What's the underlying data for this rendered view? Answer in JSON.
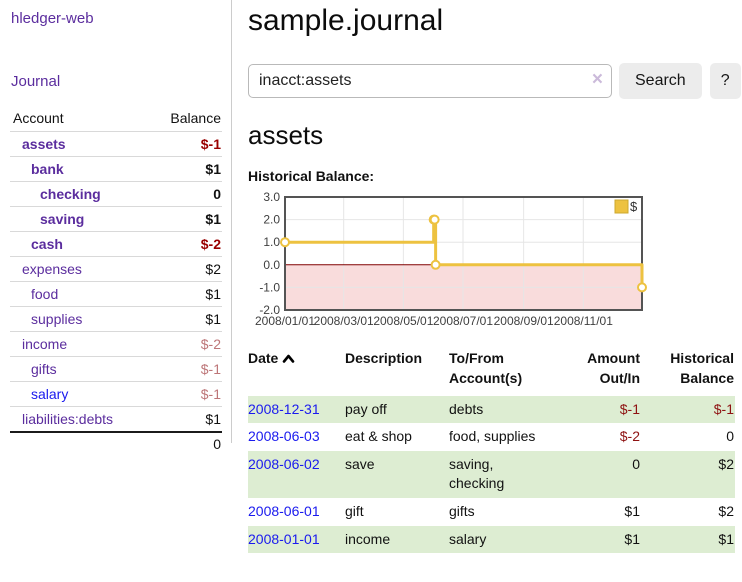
{
  "app": {
    "brand": "hledger-web",
    "nav_journal": "Journal"
  },
  "sidebar": {
    "table_headers": {
      "account": "Account",
      "balance": "Balance"
    },
    "accounts": [
      {
        "name": "assets",
        "depth": 1,
        "bold": true,
        "balance": "$-1",
        "balance_color": "negative"
      },
      {
        "name": "bank",
        "depth": 2,
        "bold": true,
        "balance": "$1",
        "balance_color": "normal"
      },
      {
        "name": "checking",
        "depth": 3,
        "bold": true,
        "balance": "0",
        "balance_color": "normal"
      },
      {
        "name": "saving",
        "depth": 3,
        "bold": true,
        "balance": "$1",
        "balance_color": "normal"
      },
      {
        "name": "cash",
        "depth": 2,
        "bold": true,
        "balance": "$-2",
        "balance_color": "negative"
      },
      {
        "name": "expenses",
        "depth": 1,
        "bold": false,
        "balance": "$2",
        "balance_color": "normal"
      },
      {
        "name": "food",
        "depth": 2,
        "bold": false,
        "balance": "$1",
        "balance_color": "normal"
      },
      {
        "name": "supplies",
        "depth": 2,
        "bold": false,
        "balance": "$1",
        "balance_color": "normal"
      },
      {
        "name": "income",
        "depth": 1,
        "bold": false,
        "balance": "$-2",
        "balance_color": "muted-negative"
      },
      {
        "name": "gifts",
        "depth": 2,
        "bold": false,
        "balance": "$-1",
        "balance_color": "muted-negative"
      },
      {
        "name": "salary",
        "depth": 2,
        "bold": false,
        "balance": "$-1",
        "balance_color": "muted-negative",
        "link_color": "blue"
      },
      {
        "name": "liabilities:debts",
        "depth": 1,
        "bold": false,
        "balance": "$1",
        "balance_color": "normal"
      }
    ],
    "total": "0"
  },
  "header": {
    "title": "sample.journal"
  },
  "search": {
    "value": "inacct:assets",
    "clear_icon": "×",
    "button": "Search",
    "help_button": "?"
  },
  "account_page": {
    "title": "assets",
    "chart_label": "Historical Balance:"
  },
  "chart_data": {
    "type": "line",
    "step": true,
    "x_start": "2008-01-01",
    "x_end": "2008-12-31",
    "series": [
      {
        "name": "$",
        "color": "#edc240",
        "points": [
          [
            "2008-01-01",
            1
          ],
          [
            "2008-06-01",
            2
          ],
          [
            "2008-06-02",
            2
          ],
          [
            "2008-06-03",
            0
          ],
          [
            "2008-12-31",
            -1
          ]
        ]
      }
    ],
    "xticks": [
      "2008/01/01",
      "2008/03/01",
      "2008/05/01",
      "2008/07/01",
      "2008/09/01",
      "2008/11/01"
    ],
    "yticks": [
      3,
      2,
      1,
      0,
      -1,
      -2
    ],
    "ylim": [
      -2,
      3
    ],
    "legend_position": "top-right",
    "grid": true,
    "negative_region_color": "#f9dcdc",
    "zero_line_color": "#800000",
    "border_color": "#545454",
    "gridline_color": "#e6e6e6"
  },
  "register": {
    "headers": {
      "date": "Date",
      "sort_icon": "chevron-up",
      "description": "Description",
      "tofrom": "To/From Account(s)",
      "amount": "Amount Out/In",
      "balance": "Historical Balance"
    },
    "rows": [
      {
        "date": "2008-12-31",
        "description": "pay off",
        "accounts": "debts",
        "amount": "$-1",
        "amount_negative": true,
        "balance": "$-1",
        "balance_negative": true
      },
      {
        "date": "2008-06-03",
        "description": "eat & shop",
        "accounts": "food, supplies",
        "amount": "$-2",
        "amount_negative": true,
        "balance": "0",
        "balance_negative": false
      },
      {
        "date": "2008-06-02",
        "description": "save",
        "accounts": "saving, checking",
        "amount": "0",
        "amount_negative": false,
        "balance": "$2",
        "balance_negative": false
      },
      {
        "date": "2008-06-01",
        "description": "gift",
        "accounts": "gifts",
        "amount": "$1",
        "amount_negative": false,
        "balance": "$2",
        "balance_negative": false
      },
      {
        "date": "2008-01-01",
        "description": "income",
        "accounts": "salary",
        "amount": "$1",
        "amount_negative": false,
        "balance": "$1",
        "balance_negative": false
      }
    ]
  },
  "colors": {
    "link_purple": "#5b2d9e",
    "link_blue": "#1a1aee",
    "negative_strong": "#990000",
    "negative_muted": "#bd7678",
    "zebra_green": "#ddedd2",
    "series_gold": "#edc240",
    "chart_negative_bg": "#f9dcdc"
  }
}
